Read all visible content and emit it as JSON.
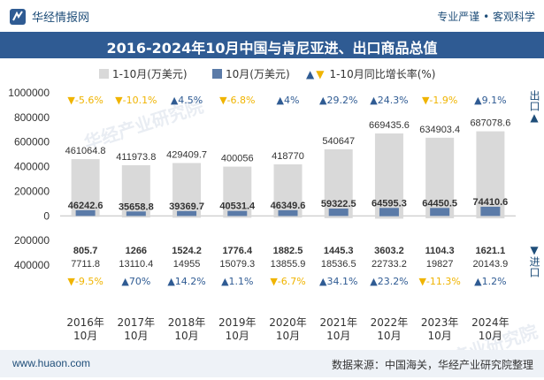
{
  "header": {
    "brand": "华经情报网",
    "tagline": "专业严谨 • 客观科学"
  },
  "title": "2016-2024年10月中国与肯尼亚进、出口商品总值",
  "legend": {
    "cum": "1-10月(万美元)",
    "month": "10月(万美元)",
    "yoy": "1-10月同比增长率(%)"
  },
  "side": {
    "export": "出口",
    "import": "进口"
  },
  "watermark": "华经产业研究院",
  "footer": {
    "url": "www.huaon.com",
    "source": "数据来源：中国海关，华经产业研究院整理"
  },
  "colors": {
    "cum_bar": "#d9d9d9",
    "month_bar": "#5b7ba8",
    "up": "#2f5b93",
    "down": "#f0b400",
    "title_bg": "#2f5b93"
  },
  "chart_data": {
    "type": "bar",
    "categories": [
      "2016年\n10月",
      "2017年\n10月",
      "2018年\n10月",
      "2019年\n10月",
      "2020年\n10月",
      "2021年\n10月",
      "2022年\n10月",
      "2023年\n10月",
      "2024年\n10月"
    ],
    "ylim": [
      -400000,
      1000000
    ],
    "yticks": [
      -400000,
      -200000,
      0,
      200000,
      400000,
      600000,
      800000,
      1000000
    ],
    "ytick_labels": [
      "400000",
      "200000",
      "0",
      "200000",
      "400000",
      "600000",
      "800000",
      "1000000"
    ],
    "series": [
      {
        "name": "出口 1-10月(万美元)",
        "values": [
          461064.8,
          411973.8,
          429409.7,
          400056,
          418770,
          540647,
          669435.6,
          634903.4,
          687078.6
        ],
        "labels": [
          "461064.8",
          "411973.8",
          "429409.7",
          "400056",
          "418770",
          "540647",
          "669435.6",
          "634903.4",
          "687078.6"
        ]
      },
      {
        "name": "出口 10月(万美元)",
        "values": [
          46242.6,
          35658.8,
          39369.7,
          40531.4,
          46349.6,
          59322.5,
          64595.3,
          64450.5,
          74410.6
        ],
        "labels": [
          "46242.6",
          "35658.8",
          "39369.7",
          "40531.4",
          "46349.6",
          "59322.5",
          "64595.3",
          "64450.5",
          "74410.6"
        ]
      },
      {
        "name": "出口 1-10月同比增长率(%)",
        "values": [
          -5.6,
          -10.1,
          4.5,
          -6.8,
          4,
          29.2,
          24.3,
          -1.9,
          9.1
        ],
        "labels": [
          "-5.6%",
          "-10.1%",
          "4.5%",
          "-6.8%",
          "4%",
          "29.2%",
          "24.3%",
          "-1.9%",
          "9.1%"
        ]
      },
      {
        "name": "进口 1-10月(万美元)",
        "values": [
          7711.8,
          13110.4,
          14955,
          15079.3,
          13855.9,
          18536.5,
          22733.2,
          19827,
          20143.9
        ],
        "labels": [
          "7711.8",
          "13110.4",
          "14955",
          "15079.3",
          "13855.9",
          "18536.5",
          "22733.2",
          "19827",
          "20143.9"
        ]
      },
      {
        "name": "进口 10月(万美元)",
        "values": [
          805.7,
          1266,
          1524.2,
          1776.4,
          1882.5,
          1445.3,
          3603.2,
          1104.3,
          1621.1
        ],
        "labels": [
          "805.7",
          "1266",
          "1524.2",
          "1776.4",
          "1882.5",
          "1445.3",
          "3603.2",
          "1104.3",
          "1621.1"
        ]
      },
      {
        "name": "进口 1-10月同比增长率(%)",
        "values": [
          -9.5,
          70,
          14.2,
          1.1,
          -6.7,
          34.1,
          23.2,
          -11.3,
          1.2
        ],
        "labels": [
          "-9.5%",
          "70%",
          "14.2%",
          "1.1%",
          "-6.7%",
          "34.1%",
          "23.2%",
          "-11.3%",
          "1.2%"
        ]
      }
    ]
  }
}
